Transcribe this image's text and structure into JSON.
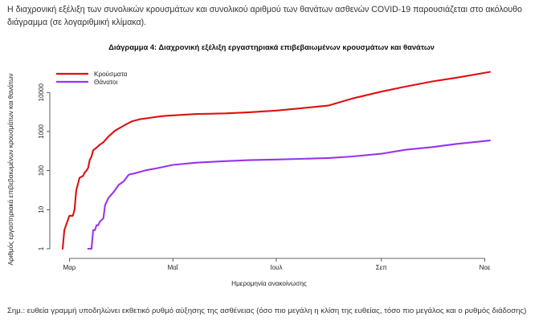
{
  "intro_text": "Η διαχρονική εξέλιξη των συνολικών κρουσμάτων και συνολικού αριθμού των θανάτων ασθενών COVID-19 παρουσιάζεται στο ακόλουθο διάγραμμα (σε λογαριθμική κλίμακα).",
  "note_text": "Σημ.: ευθεία γραμμή υποδηλώνει εκθετικό ρυθμό αύξησης της ασθένειας (όσο πιο μεγάλη η κλίση της ευθείας, τόσο πιο μεγάλος και ο ρυθμός διάδοσης)",
  "chart_data": {
    "type": "line",
    "title": "Διάγραμμα 4: Διαχρονική εξέλιξη εργαστηριακά επιβεβαιωμένων κρουσμάτων και θανάτων",
    "xlabel": "Ημερομηνία ανακοίνωσης",
    "ylabel": "Αριθμός εργαστηριακά επιβεβαιωμένων κρουσμάτων και θανάτων",
    "y_scale": "log",
    "ylim": [
      1,
      30000
    ],
    "y_ticks": [
      1,
      10,
      100,
      1000,
      10000
    ],
    "y_tick_labels": [
      "1",
      "10",
      "100",
      "1000",
      "10000"
    ],
    "x_ticks": [
      "2020-03-01",
      "2020-05-01",
      "2020-07-01",
      "2020-09-01",
      "2020-11-01"
    ],
    "x_tick_labels": [
      "Μαρ",
      "Μαΐ",
      "Ιουλ",
      "Σεπ",
      "Νοε"
    ],
    "xlim": [
      "2020-02-26",
      "2020-11-05"
    ],
    "grid": false,
    "legend_position": "top-left",
    "series": [
      {
        "name": "Κρούσματα",
        "color": "#dd1111",
        "points": [
          [
            "2020-02-26",
            1
          ],
          [
            "2020-02-27",
            3
          ],
          [
            "2020-02-28",
            4
          ],
          [
            "2020-03-01",
            7
          ],
          [
            "2020-03-03",
            7
          ],
          [
            "2020-03-04",
            10
          ],
          [
            "2020-03-05",
            31
          ],
          [
            "2020-03-07",
            66
          ],
          [
            "2020-03-09",
            73
          ],
          [
            "2020-03-10",
            89
          ],
          [
            "2020-03-11",
            99
          ],
          [
            "2020-03-12",
            117
          ],
          [
            "2020-03-13",
            190
          ],
          [
            "2020-03-14",
            228
          ],
          [
            "2020-03-15",
            331
          ],
          [
            "2020-03-17",
            387
          ],
          [
            "2020-03-19",
            464
          ],
          [
            "2020-03-21",
            530
          ],
          [
            "2020-03-24",
            743
          ],
          [
            "2020-03-28",
            1061
          ],
          [
            "2020-04-02",
            1415
          ],
          [
            "2020-04-07",
            1832
          ],
          [
            "2020-04-12",
            2081
          ],
          [
            "2020-04-17",
            2224
          ],
          [
            "2020-04-22",
            2401
          ],
          [
            "2020-04-27",
            2534
          ],
          [
            "2020-05-01",
            2591
          ],
          [
            "2020-05-15",
            2810
          ],
          [
            "2020-06-01",
            2918
          ],
          [
            "2020-06-15",
            3121
          ],
          [
            "2020-07-01",
            3432
          ],
          [
            "2020-07-15",
            3910
          ],
          [
            "2020-08-01",
            4662
          ],
          [
            "2020-08-15",
            7020
          ],
          [
            "2020-09-01",
            10524
          ],
          [
            "2020-09-15",
            14100
          ],
          [
            "2020-10-01",
            19100
          ],
          [
            "2020-10-15",
            23800
          ],
          [
            "2020-11-04",
            33600
          ]
        ]
      },
      {
        "name": "Θάνατοι",
        "color": "#9933ee",
        "points": [
          [
            "2020-03-12",
            1
          ],
          [
            "2020-03-14",
            1
          ],
          [
            "2020-03-15",
            3
          ],
          [
            "2020-03-16",
            3
          ],
          [
            "2020-03-17",
            4
          ],
          [
            "2020-03-18",
            4
          ],
          [
            "2020-03-19",
            5
          ],
          [
            "2020-03-21",
            6
          ],
          [
            "2020-03-22",
            13
          ],
          [
            "2020-03-24",
            20
          ],
          [
            "2020-03-27",
            28
          ],
          [
            "2020-03-30",
            43
          ],
          [
            "2020-04-02",
            53
          ],
          [
            "2020-04-05",
            79
          ],
          [
            "2020-04-09",
            86
          ],
          [
            "2020-04-15",
            102
          ],
          [
            "2020-04-22",
            116
          ],
          [
            "2020-05-01",
            140
          ],
          [
            "2020-05-15",
            160
          ],
          [
            "2020-06-01",
            175
          ],
          [
            "2020-06-15",
            185
          ],
          [
            "2020-07-01",
            192
          ],
          [
            "2020-07-15",
            200
          ],
          [
            "2020-08-01",
            210
          ],
          [
            "2020-08-15",
            230
          ],
          [
            "2020-09-01",
            270
          ],
          [
            "2020-09-15",
            340
          ],
          [
            "2020-10-01",
            400
          ],
          [
            "2020-10-15",
            480
          ],
          [
            "2020-11-04",
            590
          ]
        ]
      }
    ]
  }
}
